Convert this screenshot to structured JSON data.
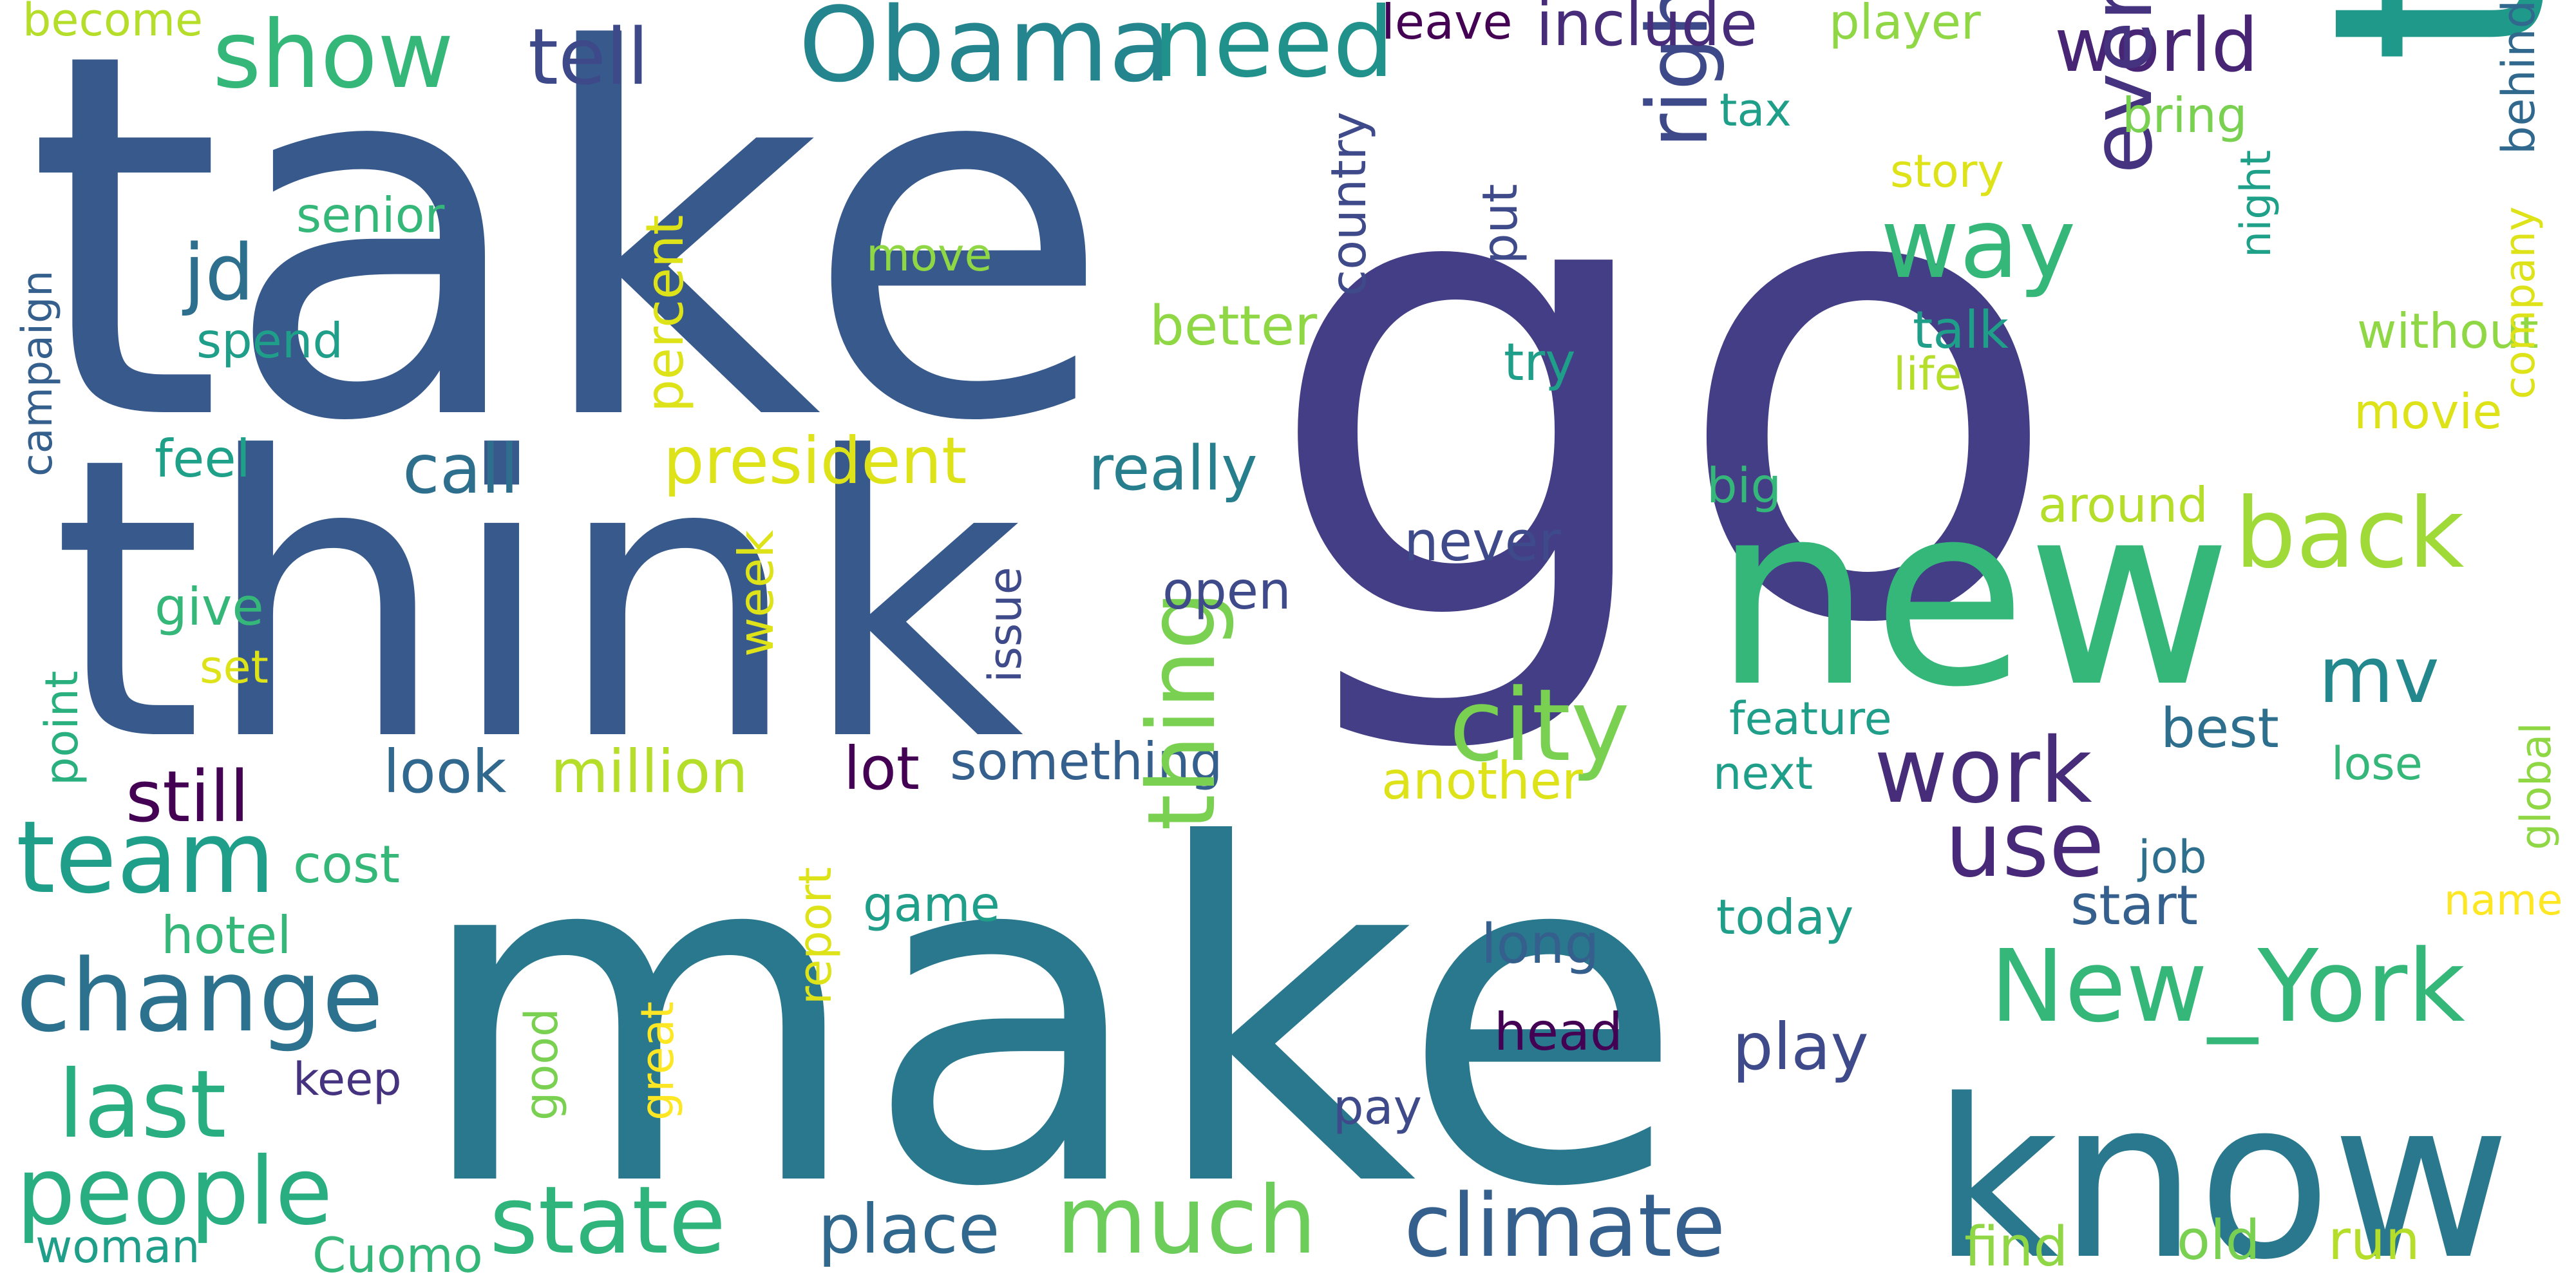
{
  "words": [
    {
      "text": "go",
      "color": "#433e85"
    },
    {
      "text": "take",
      "color": "#38598c"
    },
    {
      "text": "make",
      "color": "#2a788e"
    },
    {
      "text": "think",
      "color": "#38598c"
    },
    {
      "text": "time",
      "color": "#1f9a8a"
    },
    {
      "text": "new",
      "color": "#35b779"
    },
    {
      "text": "know",
      "color": "#2a788e"
    },
    {
      "text": "Obama",
      "color": "#25858e"
    },
    {
      "text": "need",
      "color": "#21918c"
    },
    {
      "text": "show",
      "color": "#35b779"
    },
    {
      "text": "tell",
      "color": "#3e4989"
    },
    {
      "text": "world",
      "color": "#482475"
    },
    {
      "text": "right",
      "color": "#3e4989"
    },
    {
      "text": "every",
      "color": "#46337f"
    },
    {
      "text": "way",
      "color": "#35b779"
    },
    {
      "text": "jd",
      "color": "#2e6f8e"
    },
    {
      "text": "call",
      "color": "#2e6f8e"
    },
    {
      "text": "president",
      "color": "#dde318"
    },
    {
      "text": "really",
      "color": "#277f8e"
    },
    {
      "text": "back",
      "color": "#a0da39"
    },
    {
      "text": "city",
      "color": "#7ad151"
    },
    {
      "text": "work",
      "color": "#472c7a"
    },
    {
      "text": "mv",
      "color": "#23888e"
    },
    {
      "text": "use",
      "color": "#482878"
    },
    {
      "text": "team",
      "color": "#1f9e89"
    },
    {
      "text": "change",
      "color": "#2c728e"
    },
    {
      "text": "still",
      "color": "#440154"
    },
    {
      "text": "look",
      "color": "#31688e"
    },
    {
      "text": "million",
      "color": "#b5de2b"
    },
    {
      "text": "lot",
      "color": "#440154"
    },
    {
      "text": "something",
      "color": "#355f8d"
    },
    {
      "text": "thing",
      "color": "#7ad151"
    },
    {
      "text": "New_York",
      "color": "#35b779"
    },
    {
      "text": "last",
      "color": "#28ae80"
    },
    {
      "text": "people",
      "color": "#28ae80"
    },
    {
      "text": "state",
      "color": "#2fb47c"
    },
    {
      "text": "place",
      "color": "#31688e"
    },
    {
      "text": "much",
      "color": "#6ccd5a"
    },
    {
      "text": "climate",
      "color": "#355f8d"
    },
    {
      "text": "play",
      "color": "#3e4a89"
    },
    {
      "text": "include",
      "color": "#472c7a"
    },
    {
      "text": "leave",
      "color": "#440154"
    },
    {
      "text": "player",
      "color": "#8fd744"
    },
    {
      "text": "become",
      "color": "#b5de2b"
    },
    {
      "text": "senior",
      "color": "#35b779"
    },
    {
      "text": "spend",
      "color": "#1f9e89"
    },
    {
      "text": "move",
      "color": "#8fd744"
    },
    {
      "text": "better",
      "color": "#8fd744"
    },
    {
      "text": "country",
      "color": "#3e4a89"
    },
    {
      "text": "put",
      "color": "#3e4a89"
    },
    {
      "text": "tax",
      "color": "#1f9e89"
    },
    {
      "text": "bring",
      "color": "#7ad151"
    },
    {
      "text": "story",
      "color": "#dde318"
    },
    {
      "text": "talk",
      "color": "#1f9e89"
    },
    {
      "text": "life",
      "color": "#b5de2b"
    },
    {
      "text": "try",
      "color": "#1f9e89"
    },
    {
      "text": "without",
      "color": "#8fd744"
    },
    {
      "text": "behind",
      "color": "#31688e"
    },
    {
      "text": "night",
      "color": "#1fa088"
    },
    {
      "text": "movie",
      "color": "#dde318"
    },
    {
      "text": "company",
      "color": "#dde318"
    },
    {
      "text": "around",
      "color": "#b5de2b"
    },
    {
      "text": "big",
      "color": "#35b779"
    },
    {
      "text": "percent",
      "color": "#dde318"
    },
    {
      "text": "campaign",
      "color": "#355f8d"
    },
    {
      "text": "feel",
      "color": "#1fa088"
    },
    {
      "text": "give",
      "color": "#35b779"
    },
    {
      "text": "set",
      "color": "#dde318"
    },
    {
      "text": "point",
      "color": "#2ab07f"
    },
    {
      "text": "week",
      "color": "#dde318"
    },
    {
      "text": "issue",
      "color": "#3e4a89"
    },
    {
      "text": "open",
      "color": "#3e4a89"
    },
    {
      "text": "never",
      "color": "#3e4a89"
    },
    {
      "text": "feature",
      "color": "#1f9e89"
    },
    {
      "text": "next",
      "color": "#1f9e89"
    },
    {
      "text": "best",
      "color": "#2e6f8e"
    },
    {
      "text": "lose",
      "color": "#35b779"
    },
    {
      "text": "global",
      "color": "#8fd744"
    },
    {
      "text": "another",
      "color": "#dde318"
    },
    {
      "text": "cost",
      "color": "#35b779"
    },
    {
      "text": "hotel",
      "color": "#35b779"
    },
    {
      "text": "game",
      "color": "#1f9e89"
    },
    {
      "text": "report",
      "color": "#dde318"
    },
    {
      "text": "job",
      "color": "#2e6f8e"
    },
    {
      "text": "start",
      "color": "#355f8d"
    },
    {
      "text": "name",
      "color": "#fde725"
    },
    {
      "text": "long",
      "color": "#355f8d"
    },
    {
      "text": "today",
      "color": "#1f9e89"
    },
    {
      "text": "head",
      "color": "#440154"
    },
    {
      "text": "good",
      "color": "#7ad151"
    },
    {
      "text": "great",
      "color": "#fde725"
    },
    {
      "text": "keep",
      "color": "#46337f"
    },
    {
      "text": "pay",
      "color": "#3e4a89"
    },
    {
      "text": "woman",
      "color": "#1f9e89"
    },
    {
      "text": "Cuomo",
      "color": "#35b779"
    },
    {
      "text": "find",
      "color": "#8fd744"
    },
    {
      "text": "old",
      "color": "#7ad151"
    },
    {
      "text": "run",
      "color": "#b5de2b"
    }
  ]
}
